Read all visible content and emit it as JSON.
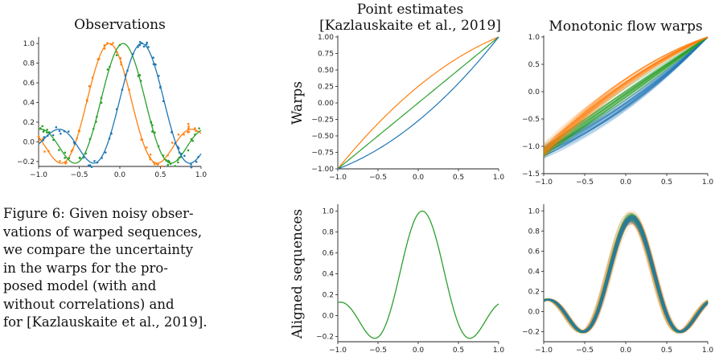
{
  "colors": {
    "blue": "#1f77b4",
    "orange": "#ff7f0e",
    "green": "#2ca02c"
  },
  "caption": {
    "lines": [
      "Figure 6: Given noisy obser-",
      "vations of warped sequences,",
      "we compare the uncertainty",
      "in the warps for the pro-",
      "posed model (with and",
      "without correlations) and",
      "for [Kazlauskaite et al., 2019]."
    ]
  },
  "chart_data": [
    {
      "id": "observations",
      "type": "line",
      "title": "Observations",
      "xlim": [
        -1.0,
        1.0
      ],
      "ylim": [
        -0.25,
        1.05
      ],
      "xticks": [
        "−1.0",
        "−0.5",
        "0.0",
        "0.5",
        "1.0"
      ],
      "yticks": [
        "1.0",
        "0.8",
        "0.6",
        "0.4",
        "0.2",
        "0.0",
        "−0.2"
      ],
      "series": [
        {
          "color": "orange",
          "peak_x": -0.13,
          "scatter": true
        },
        {
          "color": "green",
          "peak_x": 0.04,
          "scatter": true
        },
        {
          "color": "blue",
          "peak_x": 0.27,
          "scatter": true
        }
      ]
    },
    {
      "id": "point-warps",
      "type": "line",
      "title": [
        "Point estimates",
        "[Kazlauskaite et al., 2019]"
      ],
      "ylabel": "Warps",
      "xlim": [
        -1.0,
        1.0
      ],
      "ylim": [
        -1.0,
        1.0
      ],
      "xticks": [
        "−1.0",
        "−0.5",
        "0.0",
        "0.5",
        "1.0"
      ],
      "yticks": [
        "1.00",
        "0.75",
        "0.50",
        "0.25",
        "0.00",
        "−0.25",
        "−0.50",
        "−0.75",
        "−1.00"
      ],
      "series": [
        {
          "color": "orange",
          "curvature": 0.25
        },
        {
          "color": "green",
          "curvature": 0.0
        },
        {
          "color": "blue",
          "curvature": -0.27
        }
      ]
    },
    {
      "id": "flow-warps",
      "type": "line",
      "title": "Monotonic flow warps",
      "xlim": [
        -1.0,
        1.0
      ],
      "ylim": [
        -1.5,
        1.0
      ],
      "xticks": [
        "−1.0",
        "−0.5",
        "0.0",
        "0.5",
        "1.0"
      ],
      "yticks": [
        "1.0",
        "0.5",
        "0.0",
        "−0.5",
        "−1.0",
        "−1.5"
      ],
      "series": [
        {
          "color": "orange",
          "start_y": -1.1,
          "end_y": 1.0,
          "curvature": 0.2,
          "spread": 0.12
        },
        {
          "color": "green",
          "start_y": -1.1,
          "end_y": 1.0,
          "curvature": 0.0,
          "spread": 0.1
        },
        {
          "color": "blue",
          "start_y": -1.1,
          "end_y": 1.0,
          "curvature": -0.2,
          "spread": 0.12
        }
      ]
    },
    {
      "id": "point-aligned",
      "type": "line",
      "ylabel": "Aligned sequences",
      "xlim": [
        -1.0,
        1.0
      ],
      "ylim": [
        -0.25,
        1.05
      ],
      "xticks": [
        "−1.0",
        "−0.5",
        "0.0",
        "0.5",
        "1.0"
      ],
      "yticks": [
        "1.0",
        "0.8",
        "0.6",
        "0.4",
        "0.2",
        "0.0",
        "−0.2"
      ],
      "series": [
        {
          "color": "green",
          "peak_x": 0.05
        }
      ]
    },
    {
      "id": "flow-aligned",
      "type": "line",
      "xlim": [
        -1.0,
        1.0
      ],
      "ylim": [
        -0.3,
        1.05
      ],
      "xticks": [
        "−1.0",
        "−0.5",
        "0.0",
        "0.5",
        "1.0"
      ],
      "yticks": [
        "1.0",
        "0.8",
        "0.6",
        "0.4",
        "0.2",
        "0.0",
        "−0.2"
      ],
      "series": [
        {
          "color": "orange",
          "peak_x": 0.07,
          "spread": 0.04
        },
        {
          "color": "green",
          "peak_x": 0.07,
          "spread": 0.03
        },
        {
          "color": "blue",
          "peak_x": 0.07,
          "spread": 0.02
        }
      ]
    }
  ]
}
